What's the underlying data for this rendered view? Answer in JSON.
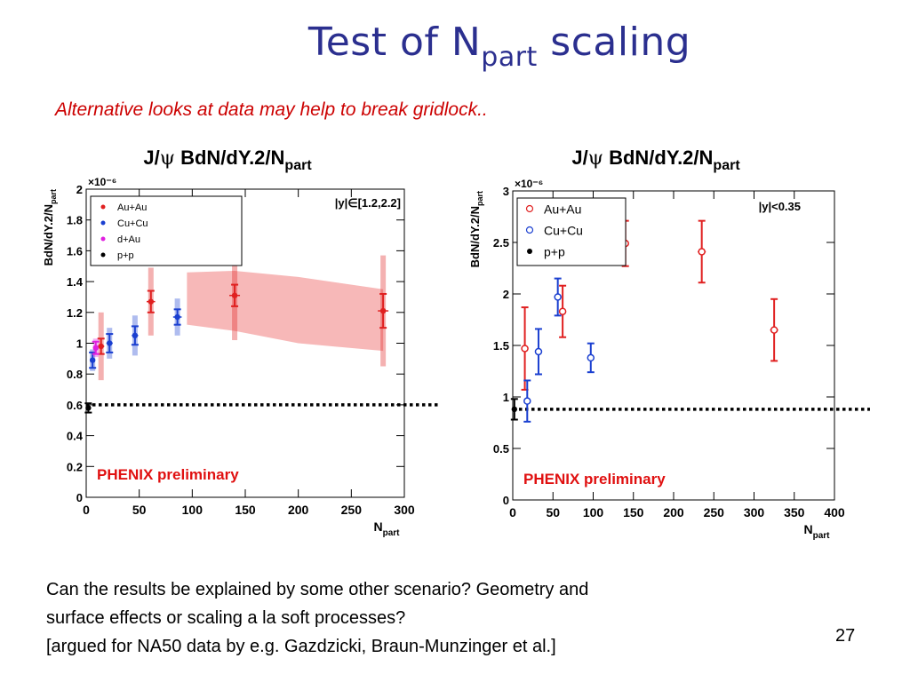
{
  "slide": {
    "title_main": "Test of N",
    "title_sub": "part",
    "title_end": " scaling",
    "subtitle": "Alternative looks at data may help to break gridlock..",
    "bottom_lines": [
      "Can the results be explained by some other scenario? Geometry and",
      "surface effects or scaling a la soft processes?",
      "[argued for NA50 data by e.g. Gazdzicki, Braun-Munzinger et al.]"
    ],
    "page_number": "27"
  },
  "chart_data": [
    {
      "type": "scatter",
      "title": "J/ψ BdN/dY.2/N_part",
      "title_parts": [
        "J/",
        "ψ",
        " BdN/dY.2/N",
        "part"
      ],
      "xlabel_parts": [
        "N",
        "part"
      ],
      "ylabel_parts": [
        "BdN/dY.2/N",
        "part"
      ],
      "y_multiplier": "×10⁻⁶",
      "xlim": [
        0,
        300
      ],
      "ylim": [
        0,
        2
      ],
      "xticks": [
        0,
        50,
        100,
        150,
        200,
        250,
        300
      ],
      "yticks": [
        0,
        0.2,
        0.4,
        0.6,
        0.8,
        1,
        1.2,
        1.4,
        1.6,
        1.8,
        2
      ],
      "ytick_labels": [
        "0",
        "0.2",
        "0.4",
        "0.6",
        "0.8",
        "1",
        "1.2",
        "1.4",
        "1.6",
        "1.8",
        "2"
      ],
      "rapidity_label": "|y|∈[1.2,2.2]",
      "annotation": "PHENIX preliminary",
      "legend_position": "top-left",
      "reference_line_y": 0.6,
      "band": {
        "color": "#f4a0a0",
        "upper": [
          [
            95,
            1.46
          ],
          [
            140,
            1.47
          ],
          [
            200,
            1.43
          ],
          [
            280,
            1.35
          ]
        ],
        "lower": [
          [
            95,
            1.12
          ],
          [
            140,
            1.08
          ],
          [
            200,
            1.0
          ],
          [
            280,
            0.95
          ]
        ]
      },
      "series": [
        {
          "name": "Au+Au",
          "marker": "filled-circle",
          "color": "#e02020",
          "points": [
            {
              "x": 14,
              "y": 0.98,
              "stat": 0.05,
              "sys": 0.22,
              "xerr": 3
            },
            {
              "x": 61,
              "y": 1.27,
              "stat": 0.07,
              "sys": 0.22,
              "xerr": 4
            },
            {
              "x": 140,
              "y": 1.31,
              "stat": 0.07,
              "sys": 0.29,
              "xerr": 5
            },
            {
              "x": 280,
              "y": 1.21,
              "stat": 0.11,
              "sys": 0.36,
              "xerr": 5
            }
          ]
        },
        {
          "name": "Cu+Cu",
          "marker": "filled-circle",
          "color": "#1a3fd0",
          "points": [
            {
              "x": 6,
              "y": 0.89,
              "stat": 0.05,
              "sys": 0.07,
              "xerr": 2
            },
            {
              "x": 22,
              "y": 1.0,
              "stat": 0.06,
              "sys": 0.1,
              "xerr": 3
            },
            {
              "x": 46,
              "y": 1.05,
              "stat": 0.06,
              "sys": 0.13,
              "xerr": 3
            },
            {
              "x": 86,
              "y": 1.17,
              "stat": 0.05,
              "sys": 0.12,
              "xerr": 4
            }
          ]
        },
        {
          "name": "d+Au",
          "marker": "filled-circle",
          "color": "#e020e0",
          "points": [
            {
              "x": 9,
              "y": 0.97,
              "stat": 0.04,
              "sys": 0.06,
              "xerr": 1
            }
          ]
        },
        {
          "name": "p+p",
          "marker": "filled-circle",
          "color": "#000000",
          "points": [
            {
              "x": 2,
              "y": 0.58,
              "stat": 0.03,
              "sys": 0.0,
              "xerr": 0
            }
          ]
        }
      ]
    },
    {
      "type": "scatter",
      "title": "J/ψ BdN/dY.2/N_part",
      "title_parts": [
        "J/",
        "ψ",
        " BdN/dY.2/N",
        "part"
      ],
      "xlabel_parts": [
        "N",
        "part"
      ],
      "ylabel_parts": [
        "BdN/dY.2/N",
        "part"
      ],
      "y_multiplier": "×10⁻⁶",
      "xlim": [
        0,
        400
      ],
      "ylim": [
        0,
        3
      ],
      "xticks": [
        0,
        50,
        100,
        150,
        200,
        250,
        300,
        350,
        400
      ],
      "yticks": [
        0,
        0.5,
        1,
        1.5,
        2,
        2.5,
        3
      ],
      "ytick_labels": [
        "0",
        "0.5",
        "1",
        "1.5",
        "2",
        "2.5",
        "3"
      ],
      "rapidity_label": "|y|<0.35",
      "annotation": "PHENIX preliminary",
      "legend_position": "top-left",
      "reference_line_y": 0.88,
      "band": null,
      "series": [
        {
          "name": "Au+Au",
          "marker": "open-circle",
          "color": "#e02020",
          "points": [
            {
              "x": 15,
              "y": 1.47,
              "stat": 0.4,
              "sys": 0.0,
              "xerr": 2
            },
            {
              "x": 62,
              "y": 1.83,
              "stat": 0.25,
              "sys": 0.0,
              "xerr": 3
            },
            {
              "x": 140,
              "y": 2.49,
              "stat": 0.22,
              "sys": 0.0,
              "xerr": 4
            },
            {
              "x": 235,
              "y": 2.41,
              "stat": 0.3,
              "sys": 0.0,
              "xerr": 5
            },
            {
              "x": 325,
              "y": 1.65,
              "stat": 0.3,
              "sys": 0.0,
              "xerr": 5
            }
          ]
        },
        {
          "name": "Cu+Cu",
          "marker": "open-circle",
          "color": "#1a3fd0",
          "points": [
            {
              "x": 18,
              "y": 0.96,
              "stat": 0.2,
              "sys": 0.0,
              "xerr": 2
            },
            {
              "x": 32,
              "y": 1.44,
              "stat": 0.22,
              "sys": 0.0,
              "xerr": 3
            },
            {
              "x": 56,
              "y": 1.97,
              "stat": 0.18,
              "sys": 0.0,
              "xerr": 3
            },
            {
              "x": 97,
              "y": 1.38,
              "stat": 0.14,
              "sys": 0.0,
              "xerr": 3
            }
          ]
        },
        {
          "name": "p+p",
          "marker": "filled-circle",
          "color": "#000000",
          "points": [
            {
              "x": 2,
              "y": 0.88,
              "stat": 0.1,
              "sys": 0.0,
              "xerr": 0
            }
          ]
        }
      ]
    }
  ]
}
